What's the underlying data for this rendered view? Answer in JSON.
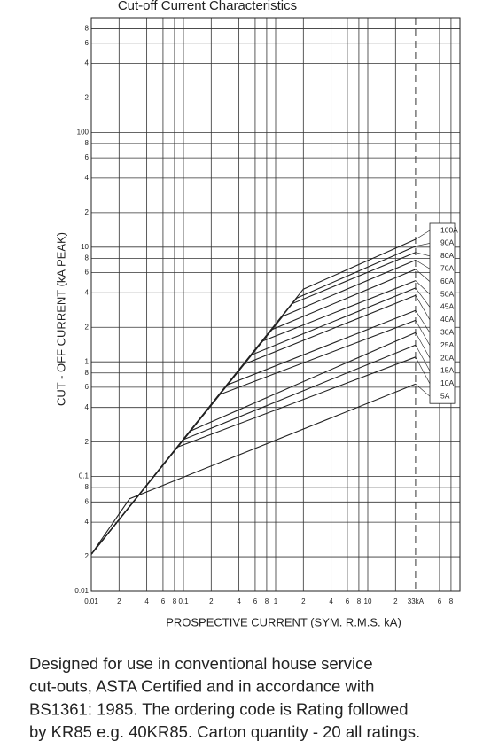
{
  "chart_data": {
    "type": "line",
    "title": "Cut-off Current Characteristics",
    "x_label": "PROSPECTIVE CURRENT (SYM. R.M.S. kA)",
    "y_label": "CUT - OFF CURRENT (kA PEAK)",
    "xscale": "log",
    "yscale": "log",
    "grid": true,
    "color": "#222222",
    "xlim": [
      0.01,
      100
    ],
    "ylim": [
      0.01,
      1000
    ],
    "xticks": [
      0.01,
      {
        "value": 0.02,
        "label": "2"
      },
      {
        "value": 0.04,
        "label": "4"
      },
      {
        "value": 0.06,
        "label": "6"
      },
      {
        "value": 0.08,
        "label": "8"
      },
      0.1,
      {
        "value": 0.2,
        "label": "2"
      },
      {
        "value": 0.4,
        "label": "4"
      },
      {
        "value": 0.6,
        "label": "6"
      },
      {
        "value": 0.8,
        "label": "8"
      },
      1,
      2,
      4,
      6,
      8,
      10,
      {
        "value": 20,
        "label": "2"
      },
      {
        "value": 33,
        "label": "33kA",
        "style": "dashed"
      },
      {
        "value": 60,
        "label": "6"
      },
      {
        "value": 80,
        "label": "8"
      }
    ],
    "yticks": [
      0.01,
      {
        "value": 0.02,
        "label": "2"
      },
      {
        "value": 0.04,
        "label": "4"
      },
      {
        "value": 0.06,
        "label": "6"
      },
      {
        "value": 0.08,
        "label": "8"
      },
      0.1,
      {
        "value": 0.2,
        "label": "2"
      },
      {
        "value": 0.4,
        "label": "4"
      },
      {
        "value": 0.6,
        "label": "6"
      },
      {
        "value": 0.8,
        "label": "8"
      },
      1,
      2,
      4,
      6,
      8,
      10,
      {
        "value": 20,
        "label": "2"
      },
      {
        "value": 40,
        "label": "4"
      },
      {
        "value": 60,
        "label": "6"
      },
      {
        "value": 80,
        "label": "8"
      },
      100,
      {
        "value": 200,
        "label": "2"
      },
      {
        "value": 400,
        "label": "4"
      },
      {
        "value": 600,
        "label": "6"
      },
      {
        "value": 800,
        "label": "8"
      }
    ],
    "series": [
      {
        "name": "100A",
        "x": [
          0.01,
          2,
          33
        ],
        "values": [
          0.021,
          4.3,
          11.7
        ]
      },
      {
        "name": "90A",
        "x": [
          0.01,
          1.7,
          33
        ],
        "values": [
          0.021,
          3.6,
          10.2
        ]
      },
      {
        "name": "80A",
        "x": [
          0.01,
          1.5,
          33
        ],
        "values": [
          0.021,
          3.2,
          9.0
        ]
      },
      {
        "name": "70A",
        "x": [
          0.01,
          1.2,
          33
        ],
        "values": [
          0.021,
          2.5,
          7.7
        ]
      },
      {
        "name": "60A",
        "x": [
          0.01,
          0.9,
          33
        ],
        "values": [
          0.021,
          1.9,
          6.4
        ]
      },
      {
        "name": "50A",
        "x": [
          0.01,
          0.7,
          33
        ],
        "values": [
          0.021,
          1.5,
          5.1
        ]
      },
      {
        "name": "45A",
        "x": [
          0.01,
          0.55,
          33
        ],
        "values": [
          0.021,
          1.15,
          4.4
        ]
      },
      {
        "name": "40A",
        "x": [
          0.01,
          0.45,
          33
        ],
        "values": [
          0.021,
          0.95,
          3.8
        ]
      },
      {
        "name": "30A",
        "x": [
          0.01,
          0.3,
          33
        ],
        "values": [
          0.021,
          0.63,
          2.8
        ]
      },
      {
        "name": "25A",
        "x": [
          0.01,
          0.25,
          33
        ],
        "values": [
          0.021,
          0.52,
          2.3
        ]
      },
      {
        "name": "20A",
        "x": [
          0.01,
          0.12,
          33
        ],
        "values": [
          0.021,
          0.25,
          1.8
        ]
      },
      {
        "name": "15A",
        "x": [
          0.01,
          0.1,
          33
        ],
        "values": [
          0.021,
          0.21,
          1.4
        ]
      },
      {
        "name": "10A",
        "x": [
          0.01,
          0.085,
          33
        ],
        "values": [
          0.021,
          0.18,
          1.1
        ]
      },
      {
        "name": "5A",
        "x": [
          0.01,
          0.026,
          33
        ],
        "values": [
          0.021,
          0.064,
          0.64
        ]
      }
    ]
  },
  "description": [
    "Designed for use in conventional house service",
    "cut-outs, ASTA Certified and in accordance with",
    "BS1361: 1985. The ordering code is Rating followed",
    "by KR85 e.g. 40KR85. Carton quantity - 20 all ratings."
  ]
}
